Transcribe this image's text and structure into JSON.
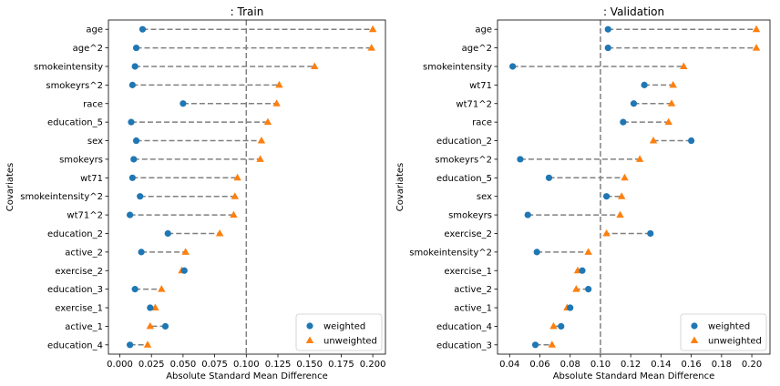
{
  "chart_data": [
    {
      "type": "scatter",
      "title": ": Train",
      "xlabel": "Absolute Standard Mean Difference",
      "ylabel": "Covariates",
      "xlim": [
        -0.009,
        0.21
      ],
      "xticks": [
        0.0,
        0.025,
        0.05,
        0.075,
        0.1,
        0.125,
        0.15,
        0.175,
        0.2
      ],
      "xtick_labels": [
        "0.000",
        "0.025",
        "0.050",
        "0.075",
        "0.100",
        "0.125",
        "0.150",
        "0.175",
        "0.200"
      ],
      "threshold": 0.1,
      "grid": false,
      "legend_position": "lower right",
      "categories": [
        "age",
        "age^2",
        "smokeintensity",
        "smokeyrs^2",
        "race",
        "education_5",
        "sex",
        "smokeyrs",
        "wt71",
        "smokeintensity^2",
        "wt71^2",
        "education_2",
        "active_2",
        "exercise_2",
        "education_3",
        "exercise_1",
        "active_1",
        "education_4"
      ],
      "series": [
        {
          "name": "weighted",
          "marker": "circle",
          "color": "#1f77b4",
          "values": [
            0.018,
            0.013,
            0.012,
            0.01,
            0.05,
            0.009,
            0.013,
            0.011,
            0.01,
            0.016,
            0.008,
            0.038,
            0.017,
            0.051,
            0.012,
            0.024,
            0.036,
            0.008
          ]
        },
        {
          "name": "unweighted",
          "marker": "triangle",
          "color": "#ff7f0e",
          "values": [
            0.2,
            0.199,
            0.154,
            0.126,
            0.124,
            0.117,
            0.112,
            0.111,
            0.093,
            0.091,
            0.09,
            0.079,
            0.052,
            0.049,
            0.033,
            0.028,
            0.024,
            0.022
          ]
        }
      ]
    },
    {
      "type": "scatter",
      "title": ": Validation",
      "xlabel": "Absolute Standard Mean Difference",
      "ylabel": "Covariates",
      "xlim": [
        0.032,
        0.212
      ],
      "xticks": [
        0.04,
        0.06,
        0.08,
        0.1,
        0.12,
        0.14,
        0.16,
        0.18,
        0.2
      ],
      "xtick_labels": [
        "0.04",
        "0.06",
        "0.08",
        "0.10",
        "0.12",
        "0.14",
        "0.16",
        "0.18",
        "0.20"
      ],
      "threshold": 0.1,
      "grid": false,
      "legend_position": "lower right",
      "categories": [
        "age",
        "age^2",
        "smokeintensity",
        "wt71",
        "wt71^2",
        "race",
        "education_2",
        "smokeyrs^2",
        "education_5",
        "sex",
        "smokeyrs",
        "exercise_2",
        "smokeintensity^2",
        "exercise_1",
        "active_2",
        "active_1",
        "education_4",
        "education_3"
      ],
      "series": [
        {
          "name": "weighted",
          "marker": "circle",
          "color": "#1f77b4",
          "values": [
            0.105,
            0.105,
            0.042,
            0.129,
            0.122,
            0.115,
            0.16,
            0.047,
            0.066,
            0.104,
            0.052,
            0.133,
            0.058,
            0.088,
            0.092,
            0.08,
            0.074,
            0.057
          ]
        },
        {
          "name": "unweighted",
          "marker": "triangle",
          "color": "#ff7f0e",
          "values": [
            0.203,
            0.203,
            0.155,
            0.148,
            0.147,
            0.145,
            0.135,
            0.126,
            0.116,
            0.114,
            0.113,
            0.104,
            0.092,
            0.085,
            0.084,
            0.078,
            0.069,
            0.068
          ]
        }
      ]
    }
  ]
}
